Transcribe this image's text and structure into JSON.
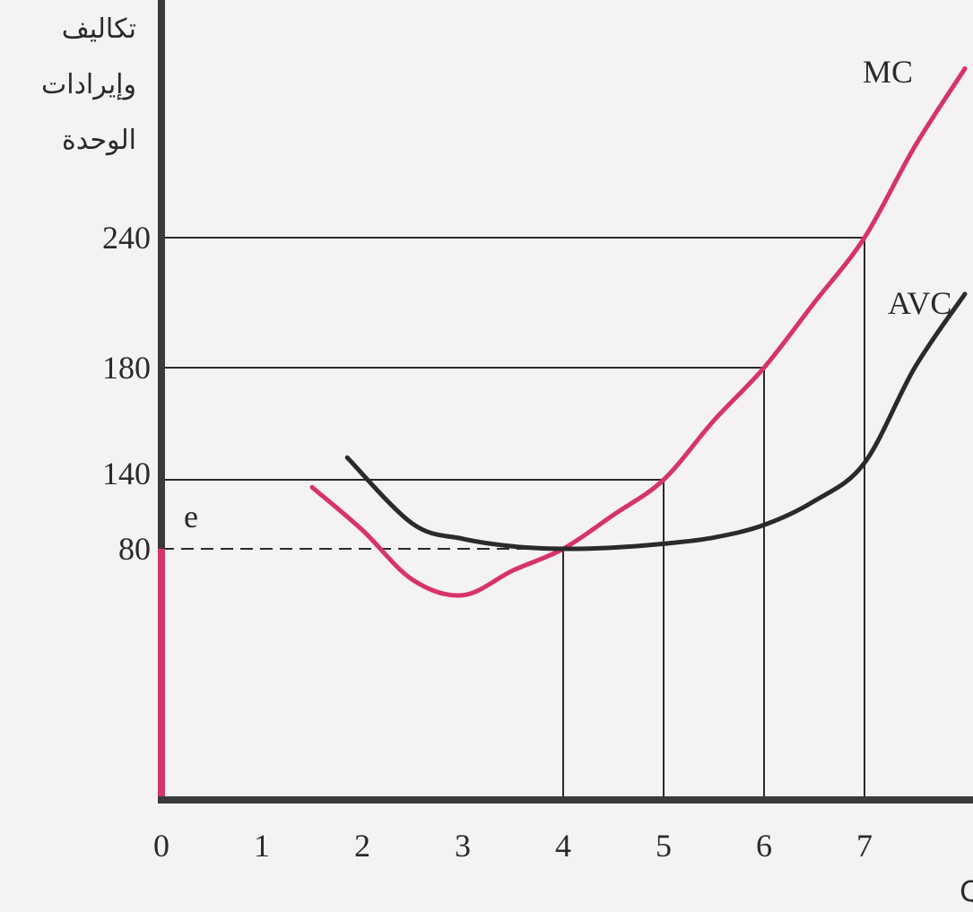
{
  "chart_data": {
    "type": "line",
    "ylabel_lines": [
      "تكاليف",
      "وإيرادات",
      "الوحدة"
    ],
    "xlabel": "حجم الإنتاج Q",
    "x_ticks": [
      "0",
      "1",
      "2",
      "3",
      "4",
      "5",
      "6",
      "7"
    ],
    "y_ticks": [
      {
        "value": 80,
        "label": "80"
      },
      {
        "value": 140,
        "label": "140"
      },
      {
        "value": 180,
        "label": "180"
      },
      {
        "value": 240,
        "label": "240"
      }
    ],
    "xlim": [
      0,
      8
    ],
    "series": [
      {
        "name": "MC",
        "color": "#d6336b",
        "x": [
          1.5,
          2,
          2.5,
          3,
          3.5,
          4,
          4.5,
          5,
          5.5,
          6,
          6.5,
          7,
          7.5,
          8
        ],
        "y": [
          129,
          95,
          70,
          65,
          73,
          80,
          107,
          135,
          160,
          180,
          210,
          240,
          282,
          318
        ]
      },
      {
        "name": "AVC",
        "color": "#2a2a2a",
        "x": [
          1.85,
          2.5,
          3,
          3.5,
          4,
          4.5,
          5,
          5.5,
          6,
          6.5,
          7,
          7.5,
          8
        ],
        "y": [
          146,
          100,
          88,
          82,
          80,
          81,
          84,
          89,
          99,
          118,
          144,
          180,
          214
        ]
      }
    ],
    "point_label": "e",
    "guide_lines": [
      {
        "x": 4,
        "y": 80,
        "dashed": true
      },
      {
        "x": 5,
        "y": 135,
        "dashed": false
      },
      {
        "x": 6,
        "y": 180,
        "dashed": false
      },
      {
        "x": 7,
        "y": 240,
        "dashed": false
      }
    ]
  }
}
